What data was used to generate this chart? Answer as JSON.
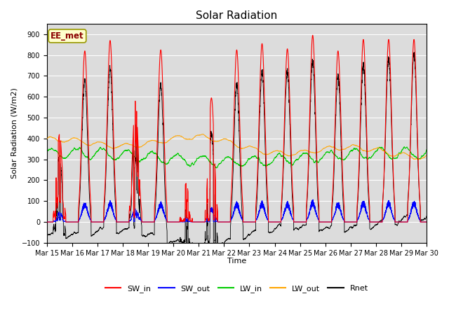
{
  "title": "Solar Radiation",
  "ylabel": "Solar Radiation (W/m2)",
  "xlabel": "Time",
  "ylim": [
    -100,
    950
  ],
  "yticks": [
    -100,
    0,
    100,
    200,
    300,
    400,
    500,
    600,
    700,
    800,
    900
  ],
  "x_labels": [
    "Mar 15",
    "Mar 16",
    "Mar 17",
    "Mar 18",
    "Mar 19",
    "Mar 20",
    "Mar 21",
    "Mar 22",
    "Mar 23",
    "Mar 24",
    "Mar 25",
    "Mar 26",
    "Mar 27",
    "Mar 28",
    "Mar 29",
    "Mar 30"
  ],
  "station_label": "EE_met",
  "bg_color": "#dcdcdc",
  "grid_color": "#ffffff",
  "n_days": 15,
  "n_pts_per_day": 288,
  "figsize": [
    6.4,
    4.8
  ],
  "dpi": 100,
  "title_fontsize": 11,
  "label_fontsize": 8,
  "tick_fontsize": 7,
  "legend_fontsize": 8,
  "lw_main": 0.7,
  "lw_legend": 1.5
}
